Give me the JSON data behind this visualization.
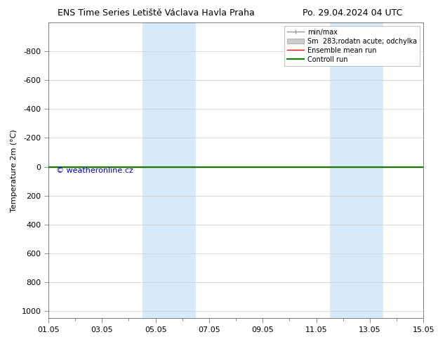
{
  "title_left": "ENS Time Series Letiště Václava Havla Praha",
  "title_right": "Po. 29.04.2024 04 UTC",
  "ylabel": "Temperature 2m (°C)",
  "ylim_top": -1000,
  "ylim_bottom": 1050,
  "yticks": [
    -800,
    -600,
    -400,
    -200,
    0,
    200,
    400,
    600,
    800,
    1000
  ],
  "xtick_labels": [
    "01.05",
    "03.05",
    "05.05",
    "07.05",
    "09.05",
    "11.05",
    "13.05",
    "15.05"
  ],
  "xtick_positions": [
    0,
    2,
    4,
    6,
    8,
    10,
    12,
    14
  ],
  "xlim": [
    0,
    14
  ],
  "blue_bands": [
    [
      3.5,
      4.5
    ],
    [
      4.5,
      5.5
    ],
    [
      10.5,
      11.5
    ],
    [
      11.5,
      12.5
    ]
  ],
  "blue_band_color": "#d8eaf8",
  "green_line_y": 0,
  "red_line_y": 0,
  "watermark": "© weatheronline.cz",
  "watermark_color": "#0000cc",
  "background_color": "#ffffff",
  "plot_bg_color": "#ffffff",
  "grid_color": "#cccccc",
  "legend_items": [
    {
      "label": "min/max",
      "color": "#999999",
      "lw": 1.0
    },
    {
      "label": "Sm  283;rodatn acute; odchylka",
      "color": "#cccccc",
      "lw": 1.0
    },
    {
      "label": "Ensemble mean run",
      "color": "#ff0000",
      "lw": 1.0
    },
    {
      "label": "Controll run",
      "color": "#008000",
      "lw": 1.5
    }
  ],
  "fontsize_title": 9,
  "fontsize_axis": 8,
  "fontsize_tick": 8,
  "fontsize_legend": 7,
  "fontsize_watermark": 8
}
